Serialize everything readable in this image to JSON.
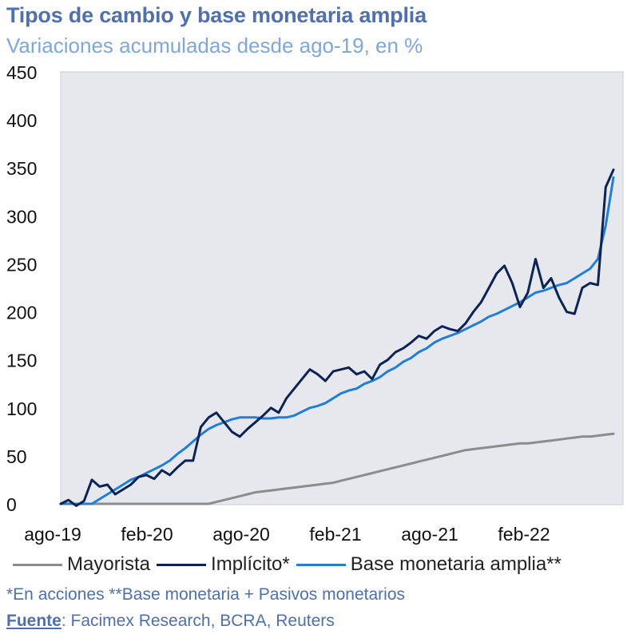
{
  "chart_data": {
    "type": "line",
    "title": "Tipos de cambio y base monetaria amplia",
    "subtitle": "Variaciones acumuladas desde ago-19, en %",
    "xlabel": "",
    "ylabel": "",
    "ylim": [
      0,
      450
    ],
    "yticks": [
      "0",
      "50",
      "100",
      "150",
      "200",
      "250",
      "300",
      "350",
      "400",
      "450"
    ],
    "xticks": [
      "ago-19",
      "feb-20",
      "ago-20",
      "feb-21",
      "ago-21",
      "feb-22"
    ],
    "grid": false,
    "legend_position": "bottom",
    "x_months": [
      0,
      1,
      2,
      3,
      4,
      5,
      6,
      7,
      8,
      9,
      10,
      11,
      12,
      13,
      14,
      15,
      16,
      17,
      18,
      19,
      20,
      21,
      22,
      23,
      24,
      25,
      26,
      27,
      28,
      29,
      30,
      31,
      32,
      33,
      34,
      35,
      36,
      37,
      38,
      39,
      40,
      41,
      42,
      43,
      44,
      45,
      46,
      47,
      48,
      49,
      50,
      51,
      52,
      53,
      54,
      55,
      56,
      57,
      58,
      59,
      60,
      61,
      62,
      63,
      64,
      65,
      66,
      67,
      68,
      69,
      70,
      71
    ],
    "series": [
      {
        "name": "Mayorista",
        "color": "#8c8c8c",
        "values": [
          0,
          0,
          0,
          0,
          0,
          0,
          0,
          0,
          0,
          0,
          0,
          0,
          0,
          0,
          0,
          0,
          0,
          0,
          0,
          0,
          2,
          4,
          6,
          8,
          10,
          12,
          13,
          14,
          15,
          16,
          17,
          18,
          19,
          20,
          21,
          22,
          24,
          26,
          28,
          30,
          32,
          34,
          36,
          38,
          40,
          42,
          44,
          46,
          48,
          50,
          52,
          54,
          56,
          57,
          58,
          59,
          60,
          61,
          62,
          63,
          63,
          64,
          65,
          66,
          67,
          68,
          69,
          70,
          70,
          71,
          72,
          73
        ]
      },
      {
        "name": "Implícito*",
        "color": "#0d2356",
        "values": [
          0,
          4,
          -2,
          3,
          25,
          18,
          20,
          10,
          15,
          20,
          28,
          30,
          26,
          35,
          30,
          38,
          45,
          45,
          80,
          90,
          95,
          85,
          75,
          70,
          78,
          85,
          92,
          100,
          95,
          110,
          120,
          130,
          140,
          135,
          128,
          138,
          140,
          142,
          135,
          138,
          130,
          145,
          150,
          158,
          162,
          168,
          175,
          172,
          180,
          185,
          182,
          180,
          188,
          200,
          210,
          225,
          240,
          248,
          230,
          205,
          220,
          255,
          225,
          235,
          215,
          200,
          198,
          225,
          230,
          228,
          330,
          348
        ]
      },
      {
        "name": "Base monetaria amplia**",
        "color": "#1f7fd6",
        "values": [
          0,
          0,
          0,
          0,
          0,
          5,
          10,
          15,
          20,
          25,
          28,
          32,
          36,
          40,
          45,
          52,
          58,
          65,
          72,
          78,
          82,
          85,
          88,
          90,
          90,
          90,
          89,
          89,
          90,
          90,
          92,
          96,
          100,
          102,
          105,
          110,
          115,
          118,
          120,
          125,
          128,
          132,
          138,
          142,
          148,
          152,
          158,
          162,
          168,
          172,
          175,
          178,
          182,
          186,
          190,
          195,
          198,
          202,
          206,
          210,
          215,
          220,
          222,
          225,
          228,
          230,
          235,
          240,
          245,
          255,
          290,
          340
        ]
      }
    ]
  },
  "legend": {
    "items": [
      {
        "label": "Mayorista",
        "color": "#8c8c8c"
      },
      {
        "label": "Implícito*",
        "color": "#0d2356"
      },
      {
        "label": "Base monetaria amplia**",
        "color": "#1f7fd6"
      }
    ]
  },
  "footnote": "*En acciones **Base monetaria + Pasivos monetarios",
  "source": {
    "label": "Fuente",
    "text": ": Facimex Research, BCRA, Reuters"
  }
}
